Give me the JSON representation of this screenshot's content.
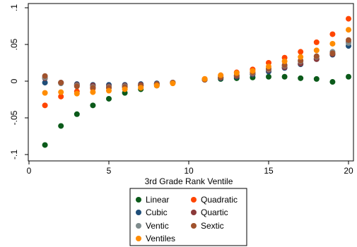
{
  "chart_data": {
    "type": "scatter",
    "xlabel": "3rd Grade Rank Ventile",
    "ylabel": "",
    "xlim": [
      0,
      20
    ],
    "ylim": [
      -0.1,
      0.1
    ],
    "x_ticks": [
      0,
      5,
      10,
      15,
      20
    ],
    "y_ticks": [
      -0.1,
      -0.05,
      0,
      0.05,
      0.1
    ],
    "y_tick_labels": [
      "-.1",
      "-.05",
      "0",
      ".05",
      ".1"
    ],
    "grid": false,
    "legend_position": "bottom",
    "series": [
      {
        "name": "Linear",
        "color": "#0b5a1a",
        "x": [
          1,
          2,
          3,
          4,
          5,
          6,
          7,
          8,
          9,
          11,
          12,
          13,
          14,
          15,
          16,
          17,
          18,
          19,
          20
        ],
        "y": [
          -0.087,
          -0.061,
          -0.045,
          -0.033,
          -0.024,
          -0.016,
          -0.011,
          -0.006,
          -0.002,
          0.002,
          0.003,
          0.004,
          0.005,
          0.006,
          0.006,
          0.004,
          0.003,
          -0.001,
          0.006
        ]
      },
      {
        "name": "Quadratic",
        "color": "#ff4500",
        "x": [
          1,
          2,
          3,
          4,
          5,
          6,
          7,
          8,
          9,
          11,
          12,
          13,
          14,
          15,
          16,
          17,
          18,
          19,
          20
        ],
        "y": [
          -0.033,
          -0.021,
          -0.014,
          -0.01,
          -0.009,
          -0.008,
          -0.006,
          -0.004,
          -0.002,
          0.003,
          0.008,
          0.012,
          0.016,
          0.025,
          0.032,
          0.04,
          0.053,
          0.064,
          0.085
        ]
      },
      {
        "name": "Cubic",
        "color": "#1f4e79",
        "x": [
          1,
          2,
          3,
          4,
          5,
          6,
          7,
          8,
          9,
          11,
          12,
          13,
          14,
          15,
          16,
          17,
          18,
          19,
          20
        ],
        "y": [
          -0.002,
          -0.002,
          -0.004,
          -0.005,
          -0.005,
          -0.005,
          -0.004,
          -0.003,
          -0.002,
          0.002,
          0.004,
          0.006,
          0.009,
          0.013,
          0.018,
          0.023,
          0.03,
          0.036,
          0.048
        ]
      },
      {
        "name": "Quartic",
        "color": "#8b3a3a",
        "x": [
          1,
          2,
          3,
          4,
          5,
          6,
          7,
          8,
          9,
          11,
          12,
          13,
          14,
          15,
          16,
          17,
          18,
          19,
          20
        ],
        "y": [
          0.004,
          -0.002,
          -0.005,
          -0.006,
          -0.007,
          -0.006,
          -0.005,
          -0.004,
          -0.002,
          0.002,
          0.005,
          0.007,
          0.01,
          0.015,
          0.019,
          0.024,
          0.03,
          0.037,
          0.053
        ]
      },
      {
        "name": "Ventic",
        "color": "#7f8c8d",
        "x": [
          1,
          2,
          3,
          4,
          5,
          6,
          7,
          8,
          9,
          11,
          12,
          13,
          14,
          15,
          16,
          17,
          18,
          19,
          20
        ],
        "y": [
          0.005,
          -0.003,
          -0.006,
          -0.008,
          -0.008,
          -0.007,
          -0.006,
          -0.004,
          -0.002,
          0.002,
          0.005,
          0.008,
          0.011,
          0.016,
          0.021,
          0.027,
          0.033,
          0.04,
          0.052
        ]
      },
      {
        "name": "Sextic",
        "color": "#a0522d",
        "x": [
          1,
          2,
          3,
          4,
          5,
          6,
          7,
          8,
          9,
          11,
          12,
          13,
          14,
          15,
          16,
          17,
          18,
          19,
          20
        ],
        "y": [
          0.007,
          -0.002,
          -0.007,
          -0.009,
          -0.009,
          -0.008,
          -0.006,
          -0.004,
          -0.002,
          0.002,
          0.005,
          0.008,
          0.012,
          0.017,
          0.022,
          0.028,
          0.034,
          0.038,
          0.056
        ]
      },
      {
        "name": "Ventiles",
        "color": "#ff8c00",
        "x": [
          1,
          2,
          3,
          4,
          5,
          6,
          7,
          8,
          9,
          11,
          12,
          13,
          14,
          15,
          16,
          17,
          18,
          19,
          20
        ],
        "y": [
          -0.016,
          -0.015,
          -0.017,
          -0.015,
          -0.013,
          -0.011,
          -0.009,
          -0.006,
          -0.003,
          0.003,
          0.008,
          0.011,
          0.014,
          0.02,
          0.027,
          0.033,
          0.042,
          0.051,
          0.07
        ]
      }
    ],
    "legend_order": [
      "Linear",
      "Quadratic",
      "Cubic",
      "Quartic",
      "Ventic",
      "Sextic",
      "Ventiles"
    ]
  }
}
